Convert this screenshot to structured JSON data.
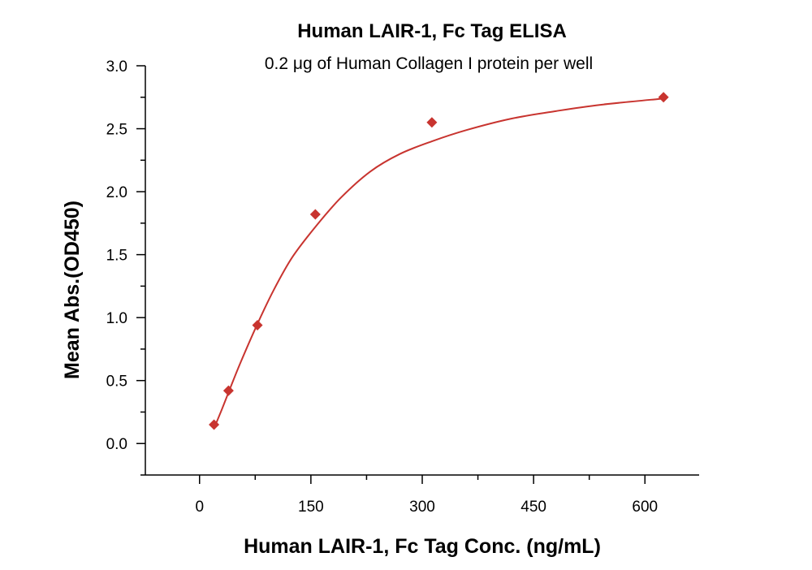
{
  "chart_data": {
    "type": "scatter",
    "title": "Human LAIR-1, Fc Tag ELISA",
    "subtitle": "0.2 μg of Human Collagen I protein per well",
    "xlabel": "Human LAIR-1, Fc Tag Conc. (ng/mL)",
    "ylabel": "Mean Abs.(OD450)",
    "xlim": [
      -73,
      673
    ],
    "ylim": [
      -0.25,
      3.0
    ],
    "xticks": [
      0,
      150,
      300,
      450,
      600
    ],
    "xtick_labels": [
      "0",
      "150",
      "300",
      "450",
      "600"
    ],
    "yticks": [
      0.0,
      0.5,
      1.0,
      1.5,
      2.0,
      2.5,
      3.0
    ],
    "ytick_labels": [
      "0.0",
      "0.5",
      "1.0",
      "1.5",
      "2.0",
      "2.5",
      "3.0"
    ],
    "grid": false,
    "series": [
      {
        "marker": "diamond",
        "color": "#c8342f",
        "x": [
          19.5,
          39,
          78,
          156,
          313,
          625
        ],
        "y": [
          0.15,
          0.42,
          0.94,
          1.82,
          2.55,
          2.75
        ]
      }
    ],
    "fit_curve": {
      "color": "#c8342f",
      "x": [
        19.5,
        30,
        40,
        55,
        78,
        100,
        125,
        156,
        190,
        230,
        270,
        313,
        360,
        420,
        480,
        540,
        625
      ],
      "y": [
        0.12,
        0.27,
        0.42,
        0.64,
        0.95,
        1.22,
        1.48,
        1.72,
        1.95,
        2.16,
        2.3,
        2.4,
        2.49,
        2.58,
        2.64,
        2.69,
        2.74
      ]
    }
  }
}
